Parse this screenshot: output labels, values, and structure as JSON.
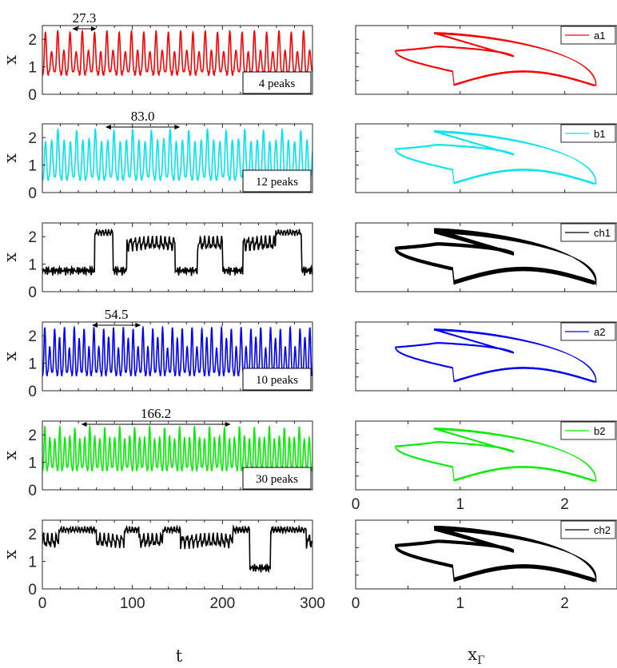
{
  "figure": {
    "left_xlabel": "t",
    "right_xlabel": "x",
    "right_xlabel_sub": "Γ",
    "left_ylabel": "x"
  },
  "chart_data": [
    {
      "type": "line",
      "panel": "time-series",
      "series": [
        {
          "name": "a1",
          "color": "#ff0000"
        }
      ],
      "xlim": [
        0,
        300
      ],
      "ylim": [
        0,
        2.5
      ],
      "xticks": [
        0,
        100,
        200,
        300
      ],
      "yticks": [
        0,
        1,
        2
      ],
      "ylabel": "x",
      "period": {
        "text": "27.3",
        "from": 33,
        "to": 60.3
      },
      "peaks_label": "4 peaks",
      "signal": {
        "cycle": 27.3,
        "peaks": [
          2.25,
          1.55,
          2.3,
          1.6
        ],
        "min": 0.7
      }
    },
    {
      "type": "line",
      "panel": "phase",
      "series": [
        {
          "name": "a1",
          "color": "#ff0000"
        }
      ],
      "xlim": [
        0,
        2.5
      ],
      "ylim": [
        0,
        2.5
      ]
    },
    {
      "type": "line",
      "panel": "time-series",
      "series": [
        {
          "name": "b1",
          "color": "#00e5ee"
        }
      ],
      "xlim": [
        0,
        300
      ],
      "ylim": [
        0,
        2.5
      ],
      "xticks": [
        0,
        100,
        200,
        300
      ],
      "yticks": [
        0,
        1,
        2
      ],
      "ylabel": "x",
      "period": {
        "text": "83.0",
        "from": 70,
        "to": 153
      },
      "peaks_label": "12 peaks",
      "signal": {
        "cycle": 83.0,
        "peaks": [
          1.85,
          1.9,
          2.3,
          1.9,
          1.85,
          2.25,
          1.9,
          1.95,
          2.3,
          1.85,
          1.9,
          2.25
        ],
        "min": 0.45
      }
    },
    {
      "type": "line",
      "panel": "phase",
      "series": [
        {
          "name": "b1",
          "color": "#00e5ee"
        }
      ],
      "xlim": [
        0,
        2.5
      ],
      "ylim": [
        0,
        2.5
      ]
    },
    {
      "type": "line",
      "panel": "time-series",
      "series": [
        {
          "name": "ch1",
          "color": "#000000"
        }
      ],
      "xlim": [
        0,
        300
      ],
      "ylim": [
        0,
        2.5
      ],
      "xticks": [
        0,
        100,
        200,
        300
      ],
      "yticks": [
        0,
        1,
        2
      ],
      "ylabel": "x",
      "signal": {
        "chaotic": true,
        "seed": 7
      }
    },
    {
      "type": "line",
      "panel": "phase",
      "series": [
        {
          "name": "ch1",
          "color": "#000000"
        }
      ],
      "xlim": [
        0,
        2.5
      ],
      "ylim": [
        0,
        2.5
      ],
      "chaotic": true
    },
    {
      "type": "line",
      "panel": "time-series",
      "series": [
        {
          "name": "a2",
          "color": "#0000ff"
        }
      ],
      "xlim": [
        0,
        300
      ],
      "ylim": [
        0,
        2.5
      ],
      "xticks": [
        0,
        100,
        200,
        300
      ],
      "yticks": [
        0,
        1,
        2
      ],
      "ylabel": "x",
      "period": {
        "text": "54.5",
        "from": 55,
        "to": 109.5
      },
      "peaks_label": "10 peaks",
      "signal": {
        "cycle": 54.5,
        "peaks": [
          2.3,
          1.6,
          2.25,
          1.95,
          2.3,
          1.55,
          2.3,
          1.9,
          2.25,
          1.6
        ],
        "min": 0.55
      }
    },
    {
      "type": "line",
      "panel": "phase",
      "series": [
        {
          "name": "a2",
          "color": "#0000ff"
        }
      ],
      "xlim": [
        0,
        2.5
      ],
      "ylim": [
        0,
        2.5
      ]
    },
    {
      "type": "line",
      "panel": "time-series",
      "series": [
        {
          "name": "b2",
          "color": "#00ee00"
        }
      ],
      "xlim": [
        0,
        300
      ],
      "ylim": [
        0,
        2.5
      ],
      "xticks": [
        0,
        100,
        200,
        300
      ],
      "yticks": [
        0,
        1,
        2
      ],
      "ylabel": "x",
      "period": {
        "text": "166.2",
        "from": 43,
        "to": 209.2
      },
      "peaks_label": "30 peaks",
      "signal": {
        "cycle": 166.2,
        "peaks": [
          2.3,
          1.9,
          1.85,
          2.3,
          1.9,
          1.95,
          2.25,
          1.85,
          1.9,
          2.3,
          1.95,
          1.85,
          2.25,
          1.9,
          1.9,
          2.3,
          1.85,
          1.95,
          2.25,
          1.9,
          1.9,
          2.3,
          1.85,
          1.9,
          2.25,
          1.95,
          1.85,
          2.3,
          1.9,
          1.9
        ],
        "min": 0.7
      }
    },
    {
      "type": "line",
      "panel": "phase",
      "series": [
        {
          "name": "b2",
          "color": "#00ee00"
        }
      ],
      "xlim": [
        0,
        2.5
      ],
      "ylim": [
        0,
        2.5
      ],
      "xticks": [
        0,
        1,
        2
      ]
    },
    {
      "type": "line",
      "panel": "time-series",
      "series": [
        {
          "name": "ch2",
          "color": "#000000"
        }
      ],
      "xlim": [
        0,
        300
      ],
      "ylim": [
        0,
        2.5
      ],
      "xticks": [
        0,
        100,
        200,
        300
      ],
      "yticks": [
        0,
        1,
        2
      ],
      "ylabel": "x",
      "signal": {
        "chaotic": true,
        "seed": 13
      }
    },
    {
      "type": "line",
      "panel": "phase",
      "series": [
        {
          "name": "ch2",
          "color": "#000000"
        }
      ],
      "xlim": [
        0,
        2.5
      ],
      "ylim": [
        0,
        2.5
      ],
      "xticks": [
        0,
        1,
        2
      ],
      "chaotic": true
    }
  ]
}
